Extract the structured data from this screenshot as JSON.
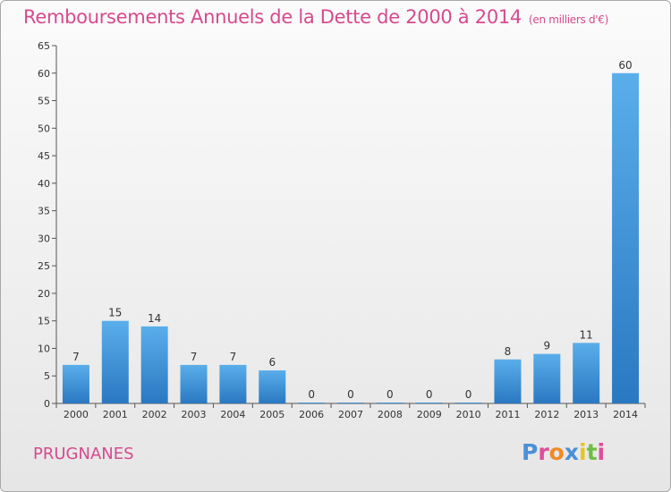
{
  "header": {
    "title": "Remboursements Annuels de la Dette de 2000 à 2014",
    "unit": "(en milliers d'€)"
  },
  "footer": {
    "town": "PRUGNANES",
    "logo_text": "Proxiti",
    "logo_colors": [
      "#4a90d9",
      "#e24b9a",
      "#f08a24",
      "#4a90d9",
      "#e8c51e",
      "#6fbe44",
      "#e24b9a"
    ]
  },
  "chart_data": {
    "type": "bar",
    "categories": [
      "2000",
      "2001",
      "2002",
      "2003",
      "2004",
      "2005",
      "2006",
      "2007",
      "2008",
      "2009",
      "2010",
      "2011",
      "2012",
      "2013",
      "2014"
    ],
    "values": [
      7,
      15,
      14,
      7,
      7,
      6,
      0,
      0,
      0,
      0,
      0,
      8,
      9,
      11,
      60
    ],
    "title": "Remboursements Annuels de la Dette de 2000 à 2014",
    "xlabel": "",
    "ylabel": "",
    "ylim": [
      0,
      65
    ],
    "yticks": [
      0,
      5,
      10,
      15,
      20,
      25,
      30,
      35,
      40,
      45,
      50,
      55,
      60,
      65
    ],
    "grid": false,
    "bar_color_light": "#5aaeea",
    "bar_color_dark": "#2a78c2"
  }
}
